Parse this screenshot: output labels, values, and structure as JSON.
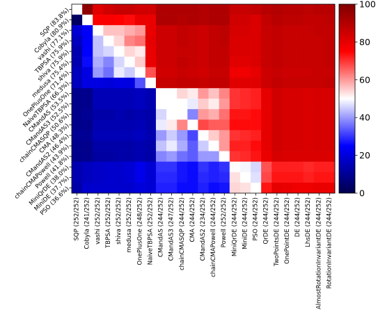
{
  "chart_data": {
    "type": "heatmap",
    "rows": [
      "SQP (83.8%)",
      "Cobyla (80.9%)",
      "vashi (77.1%)",
      "TBPSA (75.9%)",
      "shiva (75.9%)",
      "medusa (75.4%)",
      "OnePlusOne (71.4%)",
      "NaiveTBPSA (66.3%)",
      "CMandAS (53.5%)",
      "CMandAS3 (52.5%)",
      "chainCMASQP (50.6%)",
      "CMA (48.3%)",
      "CMandAS2 (46.4%)",
      "chainCMAPowell (43.9%)",
      "Powell (41.8%)",
      "MiniQrDE (38.0%)",
      "MiniDE (37.7%)",
      "PSO (36.6%)"
    ],
    "columns": [
      "SQP (252/252)",
      "Cobyla (241/252)",
      "vashi (252/252)",
      "TBPSA (252/252)",
      "shiva (252/252)",
      "medusa (252/252)",
      "OnePlusOne (248/252)",
      "NaiveTBPSA (252/252)",
      "CMandAS (244/252)",
      "CMandAS3 (247/252)",
      "chainCMASQP (244/252)",
      "CMA (244/252)",
      "CMandAS2 (234/252)",
      "chainCMAPowell (244/252)",
      "Powell (252/252)",
      "MiniQrDE (244/252)",
      "MiniDE (244/252)",
      "PSO (244/252)",
      "QrDE (244/252)",
      "TwoPointsDE (244/252)",
      "OnePointDE (244/252)",
      "DE (244/252)",
      "LhsDE (244/252)",
      "AlmostRotationInvariantDE (244/252)",
      "RotationInvariantDE (244/252)"
    ],
    "values": [
      [
        50,
        97,
        81,
        84,
        86,
        86,
        84,
        84,
        91,
        91,
        91,
        91,
        90,
        91,
        91,
        86,
        86,
        87,
        89,
        90,
        89,
        89,
        88,
        89,
        89
      ],
      [
        3,
        50,
        76,
        76,
        75,
        74,
        79,
        79,
        91,
        91,
        90,
        91,
        90,
        91,
        91,
        84,
        84,
        82,
        87,
        89,
        88,
        88,
        87,
        87,
        88
      ],
      [
        19,
        24,
        50,
        56,
        56,
        58,
        60,
        79,
        85,
        85,
        87,
        86,
        85,
        87,
        88,
        83,
        83,
        82,
        86,
        87,
        86,
        86,
        86,
        87,
        87
      ],
      [
        16,
        24,
        44,
        50,
        54,
        62,
        64,
        80,
        85,
        85,
        87,
        86,
        85,
        87,
        88,
        82,
        82,
        82,
        86,
        87,
        86,
        86,
        86,
        86,
        87
      ],
      [
        14,
        25,
        44,
        46,
        50,
        54,
        52,
        79,
        85,
        85,
        86,
        86,
        85,
        87,
        87,
        82,
        82,
        82,
        86,
        87,
        86,
        86,
        86,
        86,
        87
      ],
      [
        14,
        26,
        42,
        38,
        46,
        50,
        55,
        79,
        85,
        85,
        87,
        86,
        85,
        87,
        87,
        81,
        81,
        82,
        86,
        87,
        86,
        86,
        86,
        86,
        87
      ],
      [
        16,
        21,
        40,
        36,
        48,
        45,
        50,
        67,
        84,
        84,
        86,
        85,
        84,
        86,
        86,
        78,
        78,
        80,
        85,
        86,
        85,
        85,
        85,
        86,
        86
      ],
      [
        16,
        21,
        21,
        20,
        21,
        21,
        33,
        50,
        86,
        86,
        87,
        87,
        86,
        87,
        87,
        81,
        81,
        81,
        85,
        87,
        86,
        86,
        86,
        86,
        87
      ],
      [
        9,
        9,
        15,
        15,
        15,
        15,
        16,
        14,
        50,
        50,
        54,
        52,
        60,
        56,
        62,
        70,
        71,
        72,
        80,
        84,
        83,
        83,
        82,
        83,
        83
      ],
      [
        9,
        9,
        15,
        15,
        15,
        15,
        16,
        14,
        50,
        50,
        50,
        48,
        55,
        52,
        60,
        70,
        71,
        72,
        80,
        84,
        83,
        83,
        82,
        83,
        83
      ],
      [
        9,
        10,
        13,
        13,
        14,
        13,
        14,
        13,
        46,
        50,
        50,
        38,
        60,
        58,
        64,
        73,
        73,
        74,
        80,
        84,
        83,
        83,
        82,
        83,
        83
      ],
      [
        9,
        9,
        14,
        14,
        14,
        14,
        15,
        13,
        48,
        52,
        62,
        50,
        68,
        66,
        66,
        74,
        74,
        74,
        80,
        84,
        83,
        83,
        82,
        83,
        83
      ],
      [
        10,
        10,
        15,
        15,
        15,
        15,
        16,
        14,
        40,
        45,
        40,
        32,
        50,
        55,
        60,
        70,
        71,
        72,
        80,
        84,
        83,
        83,
        82,
        83,
        83
      ],
      [
        9,
        9,
        13,
        13,
        13,
        13,
        14,
        13,
        44,
        48,
        42,
        34,
        45,
        50,
        60,
        72,
        72,
        74,
        80,
        84,
        83,
        83,
        82,
        83,
        83
      ],
      [
        9,
        9,
        12,
        12,
        13,
        13,
        14,
        13,
        38,
        40,
        36,
        34,
        40,
        40,
        50,
        70,
        71,
        73,
        79,
        83,
        82,
        82,
        82,
        82,
        82
      ],
      [
        14,
        16,
        17,
        18,
        18,
        19,
        22,
        19,
        30,
        30,
        27,
        26,
        30,
        28,
        30,
        50,
        49,
        46,
        67,
        72,
        72,
        72,
        71,
        72,
        72
      ],
      [
        14,
        16,
        17,
        18,
        18,
        19,
        22,
        19,
        29,
        29,
        27,
        26,
        29,
        28,
        29,
        53,
        50,
        47,
        68,
        73,
        73,
        73,
        72,
        73,
        73
      ],
      [
        13,
        18,
        18,
        18,
        18,
        18,
        20,
        19,
        28,
        28,
        26,
        26,
        28,
        26,
        27,
        54,
        53,
        50,
        73,
        80,
        79,
        78,
        78,
        79,
        79
      ]
    ],
    "colormap": "seismic",
    "colorbar": {
      "min": 0,
      "max": 100,
      "ticks": [
        0,
        20,
        40,
        60,
        80,
        100
      ]
    },
    "grid": false
  }
}
